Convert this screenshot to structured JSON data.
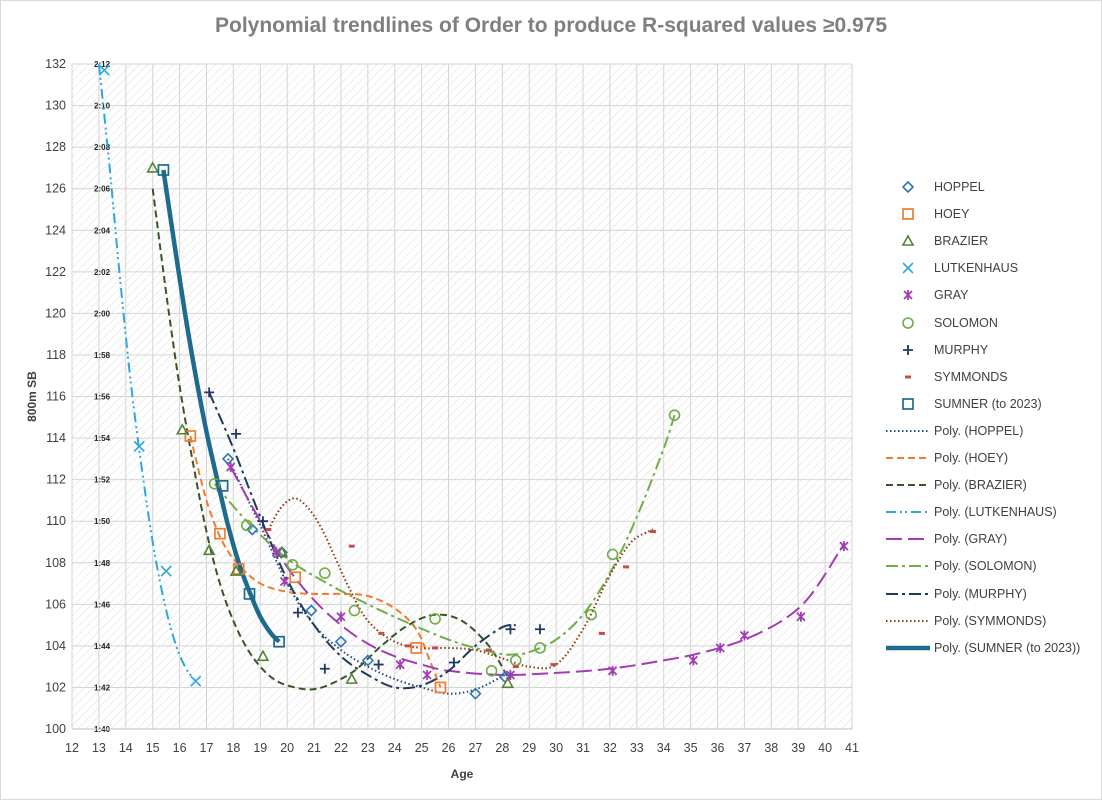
{
  "chart_data": {
    "type": "scatter",
    "title": "Polynomial trendlines of Order to produce R-squared values ≥0.975",
    "xlabel": "Age",
    "ylabel": "800m SB",
    "xlim": [
      12,
      41
    ],
    "ylim": [
      100,
      132
    ],
    "x_ticks": [
      "12",
      "13",
      "14",
      "15",
      "16",
      "17",
      "18",
      "19",
      "20",
      "21",
      "22",
      "23",
      "24",
      "25",
      "26",
      "27",
      "28",
      "29",
      "30",
      "31",
      "32",
      "33",
      "34",
      "35",
      "36",
      "37",
      "38",
      "39",
      "40",
      "41"
    ],
    "y_ticks": [
      "100",
      "102",
      "104",
      "106",
      "108",
      "110",
      "112",
      "114",
      "116",
      "118",
      "120",
      "122",
      "124",
      "126",
      "128",
      "130",
      "132"
    ],
    "time_labels": [
      "1:40",
      "1:42",
      "1:44",
      "1:46",
      "1:48",
      "1:50",
      "1:52",
      "1:54",
      "1:56",
      "1:58",
      "2:00",
      "2:02",
      "2:04",
      "2:06",
      "2:08",
      "2:10",
      "2:12"
    ],
    "grid": true,
    "legend_position": "right",
    "series": [
      {
        "name": "HOPPEL",
        "color": "#2e75b6",
        "marker": "diamond",
        "x": [
          17.8,
          18.7,
          19.8,
          20.9,
          22.0,
          23.0,
          27.0,
          28.1
        ],
        "y": [
          113.0,
          109.6,
          108.5,
          105.7,
          104.2,
          103.3,
          101.7,
          102.5
        ],
        "trend": {
          "name": "Poly. (HOPPEL)",
          "style": "dotted",
          "color": "#1f4e79",
          "x": [
            17.8,
            19,
            20,
            21,
            22,
            23,
            24,
            25,
            26,
            27,
            28.1
          ],
          "y": [
            113.0,
            109.8,
            107.0,
            105.0,
            103.8,
            103.0,
            102.4,
            102.0,
            101.7,
            101.9,
            102.6
          ]
        }
      },
      {
        "name": "HOEY",
        "color": "#ed7d31",
        "marker": "square",
        "x": [
          16.4,
          17.5,
          18.2,
          20.3,
          24.8,
          25.7
        ],
        "y": [
          114.1,
          109.4,
          107.7,
          107.3,
          103.9,
          102.0
        ],
        "trend": {
          "name": "Poly. (HOEY)",
          "style": "dashed",
          "color": "#ed7d31",
          "x": [
            16.4,
            17.0,
            17.6,
            18.2,
            19.0,
            20.0,
            21.0,
            22.0,
            23.0,
            24.0,
            24.8,
            25.3,
            25.7
          ],
          "y": [
            114.1,
            111.0,
            109.0,
            107.9,
            107.0,
            106.6,
            106.5,
            106.5,
            106.4,
            105.8,
            104.8,
            103.3,
            102.0
          ]
        }
      },
      {
        "name": "BRAZIER",
        "color": "#548235",
        "marker": "triangle",
        "x": [
          15.0,
          16.1,
          17.1,
          18.1,
          19.1,
          19.8,
          22.4,
          28.2
        ],
        "y": [
          127.0,
          114.4,
          108.6,
          107.6,
          103.5,
          108.5,
          102.4,
          102.2
        ],
        "trend": {
          "name": "Poly. (BRAZIER)",
          "style": "dashed",
          "color": "#375623",
          "x": [
            15.0,
            15.5,
            16.0,
            16.5,
            17.0,
            17.5,
            18.0,
            18.5,
            19.0,
            19.5,
            20.0,
            20.8,
            21.5,
            22.5,
            23.5,
            24.5,
            25.5,
            26.5,
            27.5,
            28.2
          ],
          "y": [
            126.0,
            121.0,
            116.5,
            112.8,
            109.5,
            107.0,
            105.2,
            103.9,
            103.0,
            102.4,
            102.1,
            101.9,
            102.1,
            102.8,
            104.0,
            105.0,
            105.5,
            105.2,
            104.0,
            102.5
          ]
        }
      },
      {
        "name": "LUTKENHAUS",
        "color": "#2ea8db",
        "marker": "x",
        "x": [
          13.2,
          14.5,
          15.5,
          16.6
        ],
        "y": [
          131.7,
          113.6,
          107.6,
          102.3
        ],
        "trend": {
          "name": "Poly. (LUTKENHAUS)",
          "style": "dashdotdot",
          "color": "#2ea8db",
          "x": [
            13.0,
            13.4,
            13.8,
            14.2,
            14.6,
            15.0,
            15.4,
            15.8,
            16.2,
            16.6
          ],
          "y": [
            132.0,
            127.0,
            121.5,
            116.5,
            112.5,
            109.0,
            106.3,
            104.3,
            103.0,
            102.3
          ]
        }
      },
      {
        "name": "GRAY",
        "color": "#a23cb4",
        "marker": "star",
        "x": [
          17.9,
          19.6,
          19.9,
          22.0,
          24.2,
          25.2,
          28.3,
          32.1,
          35.1,
          36.1,
          37.0,
          39.1,
          40.7
        ],
        "y": [
          112.6,
          108.5,
          107.1,
          105.4,
          103.1,
          102.6,
          102.6,
          102.8,
          103.3,
          103.9,
          104.5,
          105.4,
          108.8
        ],
        "trend": {
          "name": "Poly. (GRAY)",
          "style": "longdash",
          "color": "#a23cb4",
          "x": [
            17.9,
            19,
            20,
            21,
            22,
            23,
            24,
            25,
            26,
            28,
            30,
            32,
            34,
            35.5,
            37,
            38.5,
            39.5,
            40.7
          ],
          "y": [
            112.6,
            110.0,
            107.8,
            106.2,
            105.0,
            104.1,
            103.5,
            103.1,
            102.8,
            102.6,
            102.7,
            102.9,
            103.3,
            103.7,
            104.3,
            105.3,
            106.5,
            108.9
          ]
        }
      },
      {
        "name": "SOLOMON",
        "color": "#70ad47",
        "marker": "circle",
        "x": [
          17.3,
          18.5,
          20.2,
          21.4,
          22.5,
          25.5,
          27.6,
          28.5,
          29.4,
          31.3,
          32.1,
          34.4
        ],
        "y": [
          111.8,
          109.8,
          107.9,
          107.5,
          105.7,
          105.3,
          102.8,
          103.3,
          103.9,
          105.5,
          108.4,
          115.1
        ],
        "trend": {
          "name": "Poly. (SOLOMON)",
          "style": "dashdot",
          "color": "#70ad47",
          "x": [
            17.3,
            18.5,
            20,
            21.5,
            23,
            24.5,
            26,
            27,
            28,
            28.5,
            29,
            30,
            31,
            32,
            33,
            34,
            34.4
          ],
          "y": [
            111.8,
            110.0,
            108.2,
            107.0,
            106.0,
            105.1,
            104.3,
            103.9,
            103.6,
            103.6,
            103.7,
            104.3,
            105.5,
            107.5,
            110.2,
            113.5,
            115.1
          ]
        }
      },
      {
        "name": "MURPHY",
        "color": "#203864",
        "marker": "plus",
        "x": [
          17.1,
          18.1,
          19.1,
          20.4,
          21.4,
          23.4,
          26.2,
          28.3,
          29.4
        ],
        "y": [
          116.2,
          114.2,
          110.0,
          105.6,
          102.9,
          103.1,
          103.2,
          104.8,
          104.8
        ],
        "trend": {
          "name": "Poly. (MURPHY)",
          "style": "dashdot",
          "color": "#1f3b5c",
          "x": [
            17.1,
            18,
            19,
            20,
            21,
            22,
            23,
            24,
            25,
            26,
            27,
            28,
            28.5
          ],
          "y": [
            116.2,
            113.5,
            110.2,
            107.2,
            105.0,
            103.5,
            102.6,
            102.0,
            102.1,
            102.8,
            104.0,
            104.9,
            105.0
          ]
        }
      },
      {
        "name": "SYMMONDS",
        "color": "#c0504d",
        "marker": "dash",
        "x": [
          19.3,
          22.4,
          23.5,
          24.5,
          25.5,
          27.5,
          28.5,
          29.9,
          31.7,
          32.6,
          33.6
        ],
        "y": [
          109.6,
          108.8,
          104.6,
          104.0,
          103.9,
          103.8,
          103.0,
          103.1,
          104.6,
          107.8,
          109.5
        ],
        "trend": {
          "name": "Poly. (SYMMONDS)",
          "style": "dotted",
          "color": "#843c0c",
          "x": [
            19.3,
            19.8,
            20.3,
            20.8,
            21.3,
            21.8,
            22.3,
            23,
            24,
            25,
            26,
            27,
            28,
            29,
            30,
            31,
            32,
            32.8,
            33.6
          ],
          "y": [
            109.6,
            110.7,
            111.1,
            110.6,
            109.6,
            108.2,
            106.8,
            105.2,
            104.2,
            103.9,
            103.9,
            103.8,
            103.4,
            103.0,
            103.1,
            104.8,
            107.4,
            109.0,
            109.6
          ]
        }
      },
      {
        "name": "SUMNER (to 2023)",
        "color": "#1f6b8e",
        "marker": "square",
        "x": [
          15.4,
          17.6,
          18.6,
          19.7
        ],
        "y": [
          126.9,
          111.7,
          106.5,
          104.2
        ],
        "trend": {
          "name": "Poly. (SUMNER (to 2023))",
          "style": "solid",
          "color": "#1f6b8e",
          "x": [
            15.4,
            15.8,
            16.2,
            16.6,
            17.0,
            17.4,
            17.8,
            18.2,
            18.6,
            19.0,
            19.4,
            19.7
          ],
          "y": [
            126.9,
            123.4,
            120.0,
            117.0,
            114.3,
            112.0,
            109.8,
            108.0,
            106.6,
            105.4,
            104.6,
            104.2
          ]
        }
      }
    ]
  }
}
